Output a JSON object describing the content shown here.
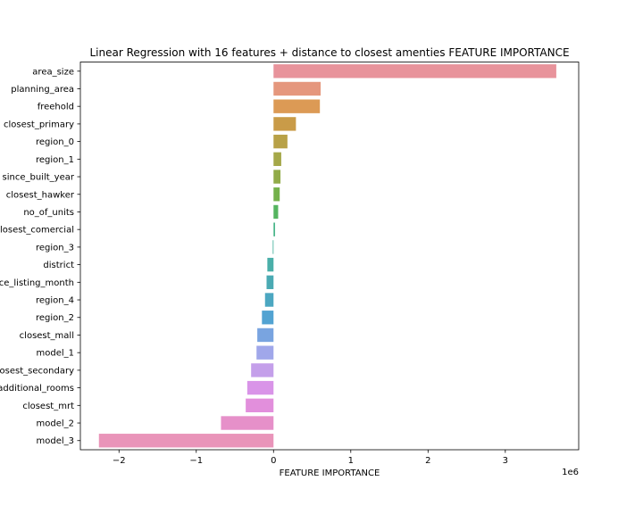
{
  "chart_data": {
    "type": "bar",
    "orientation": "horizontal",
    "title": "Linear Regression with 16 features + distance to closest amenties FEATURE IMPORTANCE",
    "xlabel": "FEATURE IMPORTANCE",
    "ylabel": "",
    "x_scale_label": "1e6",
    "xlim": [
      -2.5,
      3.95
    ],
    "xticks": [
      -2,
      -1,
      0,
      1,
      2,
      3
    ],
    "xtick_labels": [
      "−2",
      "−1",
      "0",
      "1",
      "2",
      "3"
    ],
    "grid": false,
    "legend": "none",
    "categories": [
      "area_size",
      "planning_area",
      "freehold",
      "closest_primary",
      "region_0",
      "region_1",
      "since_built_year",
      "closest_hawker",
      "no_of_units",
      "closest_comercial",
      "region_3",
      "district",
      "since_listing_month",
      "region_4",
      "region_2",
      "closest_mall",
      "model_1",
      "closest_secondary",
      "additional_rooms",
      "closest_mrt",
      "model_2",
      "model_3"
    ],
    "values": [
      3.66,
      0.61,
      0.6,
      0.29,
      0.18,
      0.1,
      0.09,
      0.08,
      0.06,
      0.02,
      -0.01,
      -0.08,
      -0.09,
      -0.11,
      -0.15,
      -0.21,
      -0.22,
      -0.29,
      -0.34,
      -0.36,
      -0.68,
      -2.26
    ],
    "colors": [
      "#e8939b",
      "#e5977d",
      "#dc9a55",
      "#c99b48",
      "#b8a147",
      "#a5a849",
      "#91ab48",
      "#74b14b",
      "#55b45f",
      "#4ab58a",
      "#49b39d",
      "#4aafa9",
      "#4aaab3",
      "#4ca7c1",
      "#52a3d2",
      "#79a4e0",
      "#a0a7ea",
      "#c49fea",
      "#d994e8",
      "#e28fdc",
      "#e690c9",
      "#e994b9"
    ]
  }
}
